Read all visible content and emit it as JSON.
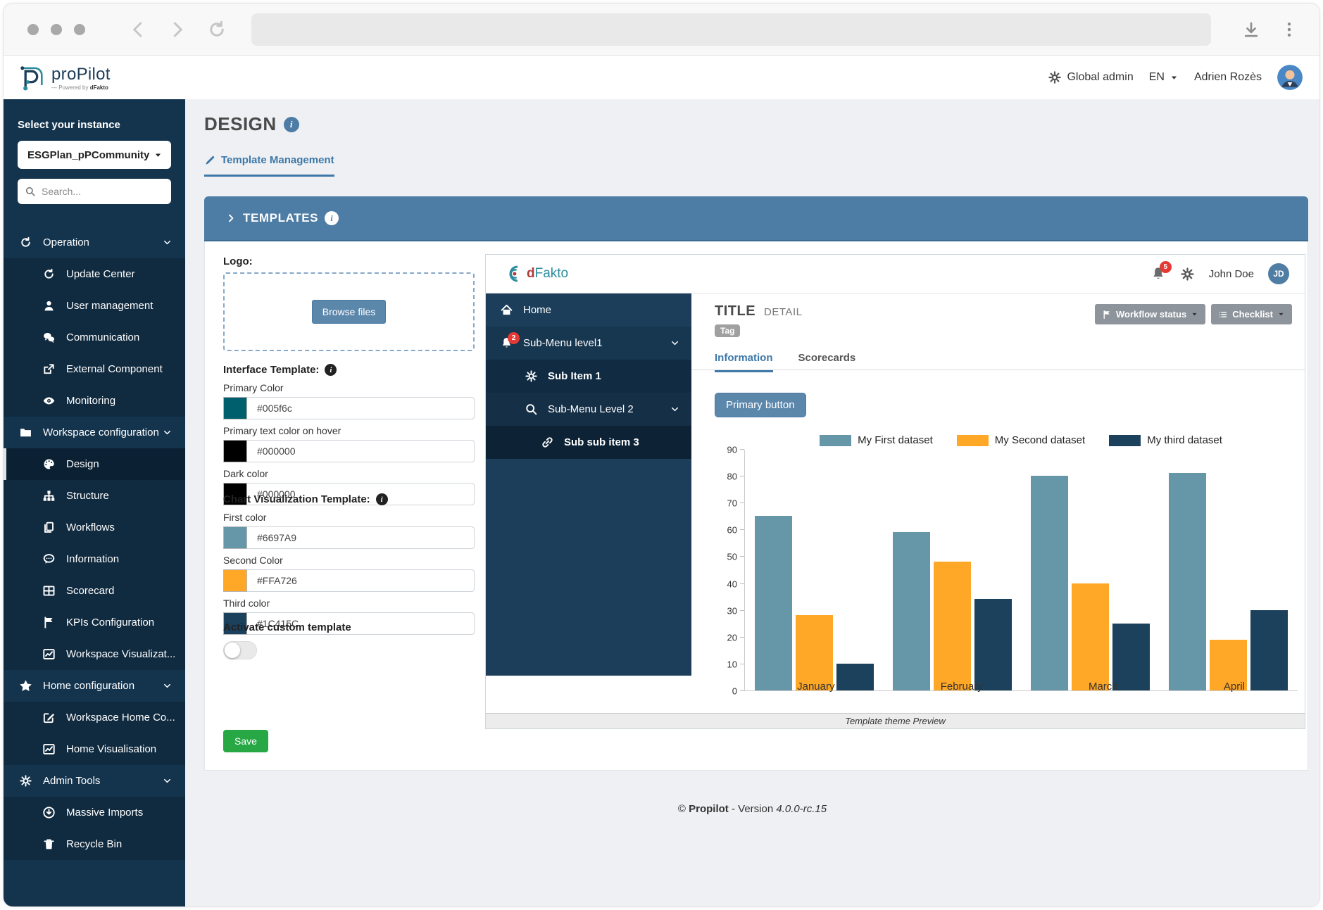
{
  "header": {
    "brand": "proPilot",
    "brand_sub_prefix": "— Powered by ",
    "brand_sub_bold": "dFakto",
    "role": "Global admin",
    "lang": "EN",
    "user": "Adrien Rozès"
  },
  "sidebar": {
    "instance_label": "Select your instance",
    "instance_value": "ESGPlan_pPCommunity",
    "search_placeholder": "Search...",
    "items": [
      {
        "label": "Operation",
        "icon": "refresh-icon",
        "type": "group"
      },
      {
        "label": "Update Center",
        "icon": "refresh-icon",
        "type": "sub"
      },
      {
        "label": "User management",
        "icon": "user-icon",
        "type": "sub"
      },
      {
        "label": "Communication",
        "icon": "chat-icon",
        "type": "sub"
      },
      {
        "label": "External Component",
        "icon": "export-icon",
        "type": "sub"
      },
      {
        "label": "Monitoring",
        "icon": "eye-icon",
        "type": "sub"
      },
      {
        "label": "Workspace configuration",
        "icon": "folder-icon",
        "type": "group"
      },
      {
        "label": "Design",
        "icon": "palette-icon",
        "type": "sub",
        "active": true
      },
      {
        "label": "Structure",
        "icon": "structure-icon",
        "type": "sub"
      },
      {
        "label": "Workflows",
        "icon": "copy-icon",
        "type": "sub"
      },
      {
        "label": "Information",
        "icon": "comment-icon",
        "type": "sub"
      },
      {
        "label": "Scorecard",
        "icon": "table-icon",
        "type": "sub"
      },
      {
        "label": "KPIs Configuration",
        "icon": "flag-icon",
        "type": "sub"
      },
      {
        "label": "Workspace Visualizat...",
        "icon": "chart-icon",
        "type": "sub"
      },
      {
        "label": "Home configuration",
        "icon": "star-icon",
        "type": "group"
      },
      {
        "label": "Workspace Home Co...",
        "icon": "edit-icon",
        "type": "sub"
      },
      {
        "label": "Home Visualisation",
        "icon": "chart-icon",
        "type": "sub"
      },
      {
        "label": "Admin Tools",
        "icon": "gear-icon",
        "type": "group"
      },
      {
        "label": "Massive Imports",
        "icon": "download-circle-icon",
        "type": "sub"
      },
      {
        "label": "Recycle Bin",
        "icon": "trash-icon",
        "type": "sub"
      }
    ]
  },
  "page": {
    "title": "DESIGN",
    "tab": "Template Management"
  },
  "templates_panel": {
    "title": "TEMPLATES",
    "logo_label": "Logo:",
    "browse_button": "Browse files",
    "interface_section": "Interface Template:",
    "interface_fields": [
      {
        "label": "Primary Color",
        "value": "#005f6c",
        "swatch": "#005f6c"
      },
      {
        "label": "Primary text color on hover",
        "value": "#000000",
        "swatch": "#000000"
      },
      {
        "label": "Dark color",
        "value": "#000000",
        "swatch": "#000000"
      }
    ],
    "chart_section": "Chart Visualization Template:",
    "chart_fields": [
      {
        "label": "First color",
        "value": "#6697A9",
        "swatch": "#6697A9"
      },
      {
        "label": "Second Color",
        "value": "#FFA726",
        "swatch": "#FFA726"
      },
      {
        "label": "Third color",
        "value": "#1C415C",
        "swatch": "#1C415C"
      }
    ],
    "toggle_label": "Activate custom template",
    "toggle_state": "off",
    "save_button": "Save"
  },
  "preview": {
    "brand_d": "d",
    "brand_rest": "Fakto",
    "notifications": "5",
    "user": "John Doe",
    "avatar": "JD",
    "menu": [
      {
        "label": "Home",
        "icon": "home-icon",
        "level": 0,
        "bg": "bg0"
      },
      {
        "label": "Sub-Menu level1",
        "icon": "bell-icon",
        "badge": "2",
        "level": 0,
        "bg": "bg1",
        "chevron": true
      },
      {
        "label": "Sub Item 1",
        "icon": "gear-icon",
        "level": 1,
        "bg": "bg2",
        "bold": true
      },
      {
        "label": "Sub-Menu Level 2",
        "icon": "search-icon",
        "level": 1,
        "bg": "bg3",
        "chevron": true
      },
      {
        "label": "Sub sub item 3",
        "icon": "link-icon",
        "level": 2,
        "bg": "bg4",
        "bold": true
      }
    ],
    "title": "TITLE",
    "subtitle": "DETAIL",
    "tag": "Tag",
    "workflow_button": "Workflow status",
    "checklist_button": "Checklist",
    "tabs": {
      "active": "Information",
      "other": "Scorecards"
    },
    "primary_button": "Primary button",
    "caption": "Template theme Preview"
  },
  "chart_data": {
    "type": "bar",
    "categories": [
      "January",
      "February",
      "March",
      "April"
    ],
    "series": [
      {
        "name": "My First dataset",
        "color": "#6697A9",
        "values": [
          65,
          59,
          80,
          81
        ]
      },
      {
        "name": "My Second dataset",
        "color": "#FFA726",
        "values": [
          28,
          48,
          40,
          19
        ]
      },
      {
        "name": "My third dataset",
        "color": "#1C415C",
        "values": [
          10,
          34,
          25,
          30
        ]
      }
    ],
    "ylim": [
      0,
      90
    ],
    "ytick_step": 10,
    "legend_position": "top",
    "grid": false
  },
  "footer": {
    "copyright_prefix": "©",
    "copyright_name": "Propilot",
    "version_label": "- Version",
    "version": "4.0.0-rc.15"
  },
  "colors": {
    "accent_bar": "#4d7ca5",
    "sidebar_bg": "#14344e",
    "save_green": "#28a745",
    "badge_red": "#e53935",
    "chart_palette": [
      "#6697A9",
      "#FFA726",
      "#1C415C"
    ]
  }
}
